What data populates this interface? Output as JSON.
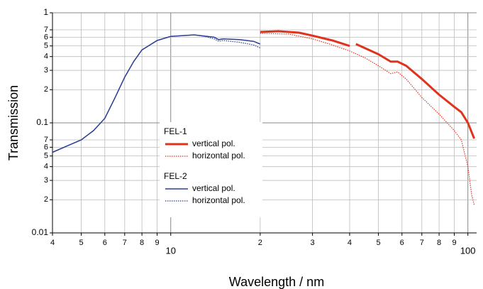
{
  "chart_data": {
    "type": "line",
    "xlabel": "Wavelength / nm",
    "ylabel": "Transmission",
    "xscale": "log",
    "yscale": "log",
    "grid": true,
    "xlim": [
      4,
      107
    ],
    "ylim": [
      0.01,
      1
    ],
    "xticks": [
      4,
      5,
      6,
      7,
      8,
      9,
      10,
      {
        "value": 20,
        "label": "2"
      },
      {
        "value": 30,
        "label": "3"
      },
      {
        "value": 40,
        "label": "4"
      },
      {
        "value": 50,
        "label": "5"
      },
      {
        "value": 60,
        "label": "6"
      },
      {
        "value": 70,
        "label": "7"
      },
      {
        "value": 80,
        "label": "8"
      },
      {
        "value": 90,
        "label": "9"
      },
      100
    ],
    "yticks": [
      0.01,
      {
        "value": 0.02,
        "label": "2"
      },
      {
        "value": 0.03,
        "label": "3"
      },
      {
        "value": 0.04,
        "label": "4"
      },
      {
        "value": 0.05,
        "label": "5"
      },
      {
        "value": 0.06,
        "label": "6"
      },
      {
        "value": 0.07,
        "label": "7"
      },
      0.1,
      {
        "value": 0.2,
        "label": "2"
      },
      {
        "value": 0.3,
        "label": "3"
      },
      {
        "value": 0.4,
        "label": "4"
      },
      {
        "value": 0.5,
        "label": "5"
      },
      {
        "value": 0.6,
        "label": "6"
      },
      {
        "value": 0.7,
        "label": "7"
      },
      1
    ],
    "series": [
      {
        "group": "FEL-1",
        "name": "vertical pol.",
        "color": "#e0331e",
        "style": "solid",
        "x": [
          20,
          23,
          27,
          30,
          35,
          40,
          41,
          42,
          50,
          55,
          58,
          62,
          70,
          80,
          90,
          95,
          100,
          105
        ],
        "values": [
          0.67,
          0.68,
          0.66,
          0.62,
          0.56,
          0.5,
          null,
          0.52,
          0.42,
          0.36,
          0.36,
          0.33,
          0.25,
          0.18,
          0.14,
          0.125,
          0.1,
          0.072
        ]
      },
      {
        "group": "FEL-1",
        "name": "horizontal pol.",
        "color": "#e0331e",
        "style": "dotted",
        "x": [
          20,
          25,
          30,
          35,
          40,
          45,
          50,
          55,
          58,
          62,
          70,
          80,
          90,
          95,
          100,
          103,
          105
        ],
        "values": [
          0.65,
          0.64,
          0.58,
          0.51,
          0.45,
          0.39,
          0.33,
          0.28,
          0.29,
          0.25,
          0.17,
          0.12,
          0.085,
          0.07,
          0.04,
          0.022,
          0.018
        ]
      },
      {
        "group": "FEL-2",
        "name": "vertical pol.",
        "color": "#2b3f93",
        "style": "solid",
        "x": [
          4,
          4.5,
          5,
          5.5,
          6,
          6.5,
          7,
          7.5,
          8,
          9,
          10,
          12,
          14,
          14.5,
          15,
          17,
          19,
          20
        ],
        "values": [
          0.054,
          0.062,
          0.07,
          0.085,
          0.11,
          0.17,
          0.26,
          0.36,
          0.46,
          0.56,
          0.61,
          0.63,
          0.6,
          0.57,
          0.58,
          0.57,
          0.55,
          0.52
        ]
      },
      {
        "group": "FEL-2",
        "name": "horizontal pol.",
        "color": "#2b3f93",
        "style": "dotted",
        "x": [
          4,
          4.5,
          5,
          5.5,
          6,
          6.5,
          7,
          7.5,
          8,
          9,
          10,
          12,
          13,
          14,
          14.5,
          15,
          17,
          19,
          20
        ],
        "values": [
          0.054,
          0.062,
          0.07,
          0.085,
          0.11,
          0.17,
          0.26,
          0.36,
          0.46,
          0.56,
          0.61,
          0.63,
          0.61,
          0.58,
          0.55,
          0.56,
          0.54,
          0.51,
          0.48
        ]
      }
    ]
  }
}
